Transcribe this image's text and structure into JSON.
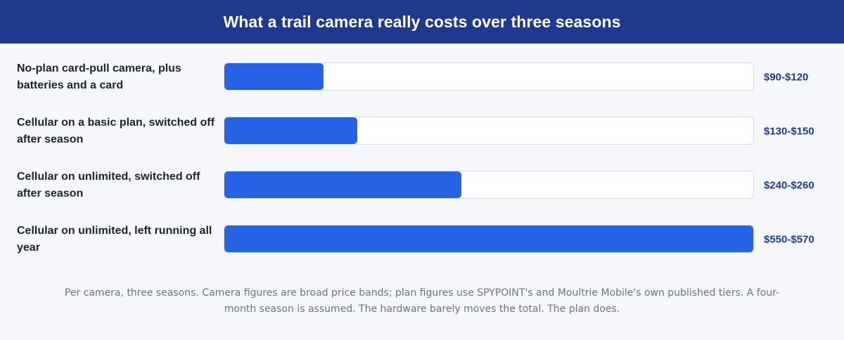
{
  "header": {
    "title": "What a trail camera really costs over three seasons"
  },
  "chart_data": {
    "type": "bar",
    "orientation": "horizontal",
    "title": "What a trail camera really costs over three seasons",
    "categories": [
      "No-plan card-pull camera, plus batteries and a card",
      "Cellular on a basic plan, switched off after season",
      "Cellular on unlimited, switched off after season",
      "Cellular on unlimited, left running all year"
    ],
    "value_labels": [
      "$90-$120",
      "$130-$150",
      "$240-$260",
      "$550-$570"
    ],
    "values": [
      105,
      140,
      250,
      560
    ],
    "xlim": [
      0,
      560
    ],
    "grid": false,
    "legend": "none",
    "colors": {
      "bar": "#2563e4",
      "track": "#ffffff",
      "header": "#1f3a8c",
      "value_text": "#1f3a8c"
    }
  },
  "footnote": "Per camera, three seasons. Camera figures are broad price bands; plan figures use SPYPOINT's and Moultrie Mobile's own published tiers. A four-month season is assumed. The hardware barely moves the total. The plan does."
}
